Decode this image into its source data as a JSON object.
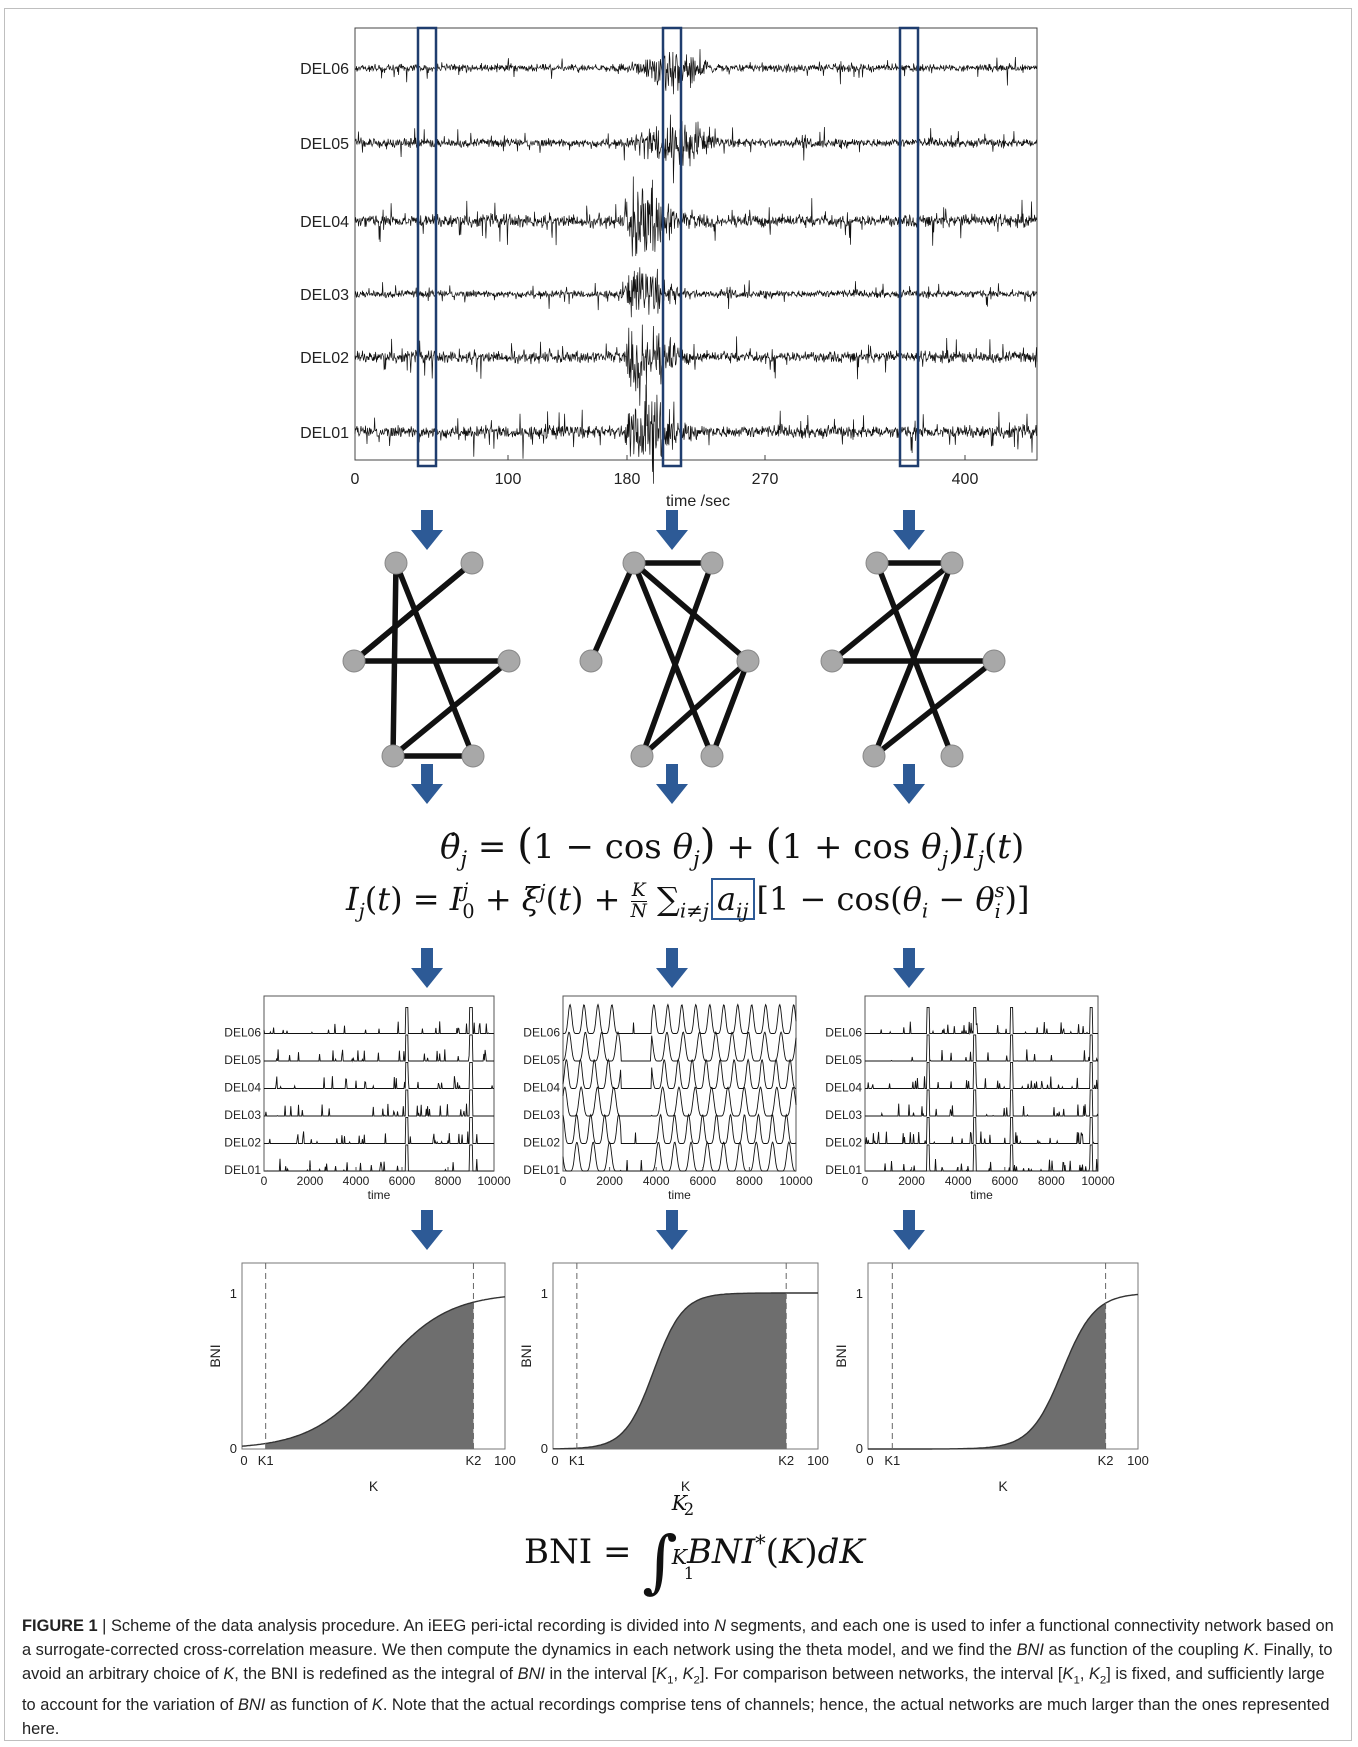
{
  "figure": {
    "eeg_panel": {
      "channels": [
        "DEL06",
        "DEL05",
        "DEL04",
        "DEL03",
        "DEL02",
        "DEL01"
      ],
      "x_ticks": [
        "0",
        "100",
        "180",
        "270",
        "400"
      ],
      "xlabel": "time /sec",
      "segment_boxes_note": ""
    },
    "equations": {
      "theta_dot": "θ̇j = (1 − cos θj) + (1 + cos θj)Ij(t)",
      "input": "Ij(t) = I0j + ξj(t) + (K/N) Σi≠j aij [1 − cos(θi − θis)]",
      "bni_integral": "BNI = ∫K1K2 BNI*(K)dK"
    },
    "dynamics_panels": {
      "channels": [
        "DEL06",
        "DEL05",
        "DEL04",
        "DEL03",
        "DEL02",
        "DEL01"
      ],
      "x_ticks": [
        "0",
        "2000",
        "4000",
        "6000",
        "8000",
        "10000"
      ],
      "xlabel": "time"
    },
    "bni_panels": {
      "ylabel": "BNI",
      "xlabel": "K",
      "y_ticks": [
        "0",
        "1"
      ],
      "x_ticks_left": [
        "0",
        "K1",
        "K2",
        "100"
      ]
    }
  },
  "caption": {
    "label": "FIGURE 1",
    "separator": " | ",
    "text_parts": [
      {
        "t": "Scheme of the data analysis procedure. An iEEG peri-ictal recording is divided into ",
        "i": false
      },
      {
        "t": "N",
        "i": true
      },
      {
        "t": " segments, and each one is used to infer a functional connectivity network based on a surrogate-corrected cross-correlation measure. We then compute the dynamics in each network using the theta model, and we find the ",
        "i": false
      },
      {
        "t": "BNI",
        "i": true
      },
      {
        "t": " as function of the coupling ",
        "i": false
      },
      {
        "t": "K",
        "i": true
      },
      {
        "t": ". Finally, to avoid an arbitrary choice of ",
        "i": false
      },
      {
        "t": "K",
        "i": true
      },
      {
        "t": ", the BNI is redefined as the integral of ",
        "i": false
      },
      {
        "t": "BNI",
        "i": true
      },
      {
        "t": " in the interval [",
        "i": false
      },
      {
        "t": "K",
        "i": true
      },
      {
        "t": "1",
        "i": false,
        "sub": true
      },
      {
        "t": ", ",
        "i": false
      },
      {
        "t": "K",
        "i": true
      },
      {
        "t": "2",
        "i": false,
        "sub": true
      },
      {
        "t": "]. For comparison between networks, the interval [",
        "i": false
      },
      {
        "t": "K",
        "i": true
      },
      {
        "t": "1",
        "i": false,
        "sub": true
      },
      {
        "t": ", ",
        "i": false
      },
      {
        "t": "K",
        "i": true
      },
      {
        "t": "2",
        "i": false,
        "sub": true
      },
      {
        "t": "] is fixed, and sufficiently large to account for the variation of ",
        "i": false
      },
      {
        "t": "BNI",
        "i": true
      },
      {
        "t": " as function of ",
        "i": false
      },
      {
        "t": "K",
        "i": true
      },
      {
        "t": ". Note that the actual recordings comprise tens of channels; hence, the actual networks are much larger than the ones represented here.",
        "i": false
      }
    ]
  },
  "colors": {
    "arrow": "#2d5a96",
    "box": "#1f3d6e",
    "node": "#a8a8a8",
    "fill": "#6e6e6e"
  }
}
